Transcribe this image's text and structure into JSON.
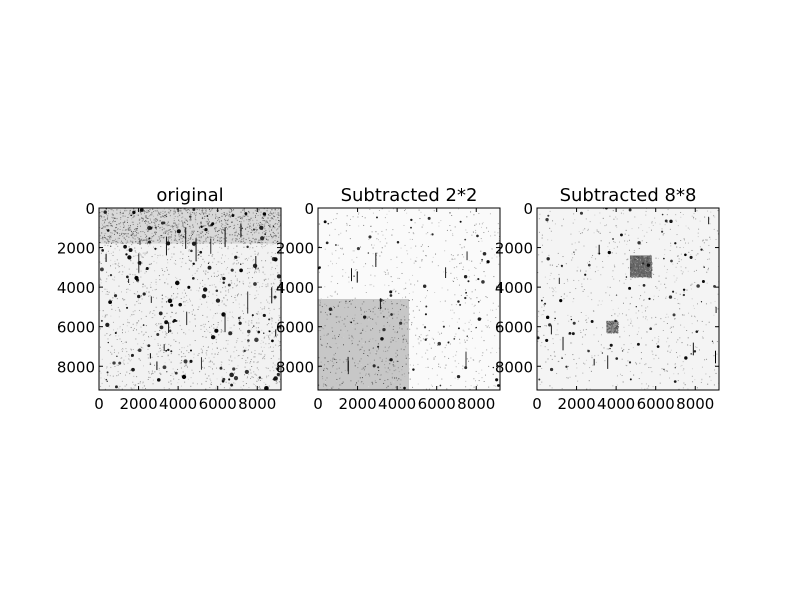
{
  "chart_data": [
    {
      "type": "heatmap",
      "title": "original",
      "xlabel": "",
      "ylabel": "",
      "xlim": [
        0,
        9200
      ],
      "ylim": [
        9200,
        0
      ],
      "xticks": [
        0,
        2000,
        4000,
        6000,
        8000
      ],
      "yticks": [
        0,
        2000,
        4000,
        6000,
        8000
      ],
      "colormap": "gray_r",
      "background": "#f2f2f2",
      "features": [
        {
          "kind": "dark band",
          "x": [
            0,
            9200
          ],
          "y": [
            0,
            1800
          ],
          "intensity": 0.45
        },
        {
          "kind": "many dark stars and vertical streaks",
          "x": [
            0,
            9200
          ],
          "y": [
            0,
            9200
          ],
          "intensity": 1.0
        }
      ]
    },
    {
      "type": "heatmap",
      "title": "Subtracted 2*2",
      "xlabel": "",
      "ylabel": "",
      "xlim": [
        0,
        9200
      ],
      "ylim": [
        9200,
        0
      ],
      "xticks": [
        0,
        2000,
        4000,
        6000,
        8000
      ],
      "yticks": [
        0,
        2000,
        4000,
        6000,
        8000
      ],
      "colormap": "gray_r",
      "background": "#fafafa",
      "features": [
        {
          "kind": "grey block",
          "x": [
            0,
            4600
          ],
          "y": [
            4600,
            9200
          ],
          "intensity": 0.22
        },
        {
          "kind": "sparse dark stars",
          "x": [
            0,
            9200
          ],
          "y": [
            0,
            9200
          ],
          "intensity": 0.9
        }
      ]
    },
    {
      "type": "heatmap",
      "title": "Subtracted 8*8",
      "xlabel": "",
      "ylabel": "",
      "xlim": [
        0,
        9200
      ],
      "ylim": [
        9200,
        0
      ],
      "xticks": [
        0,
        2000,
        4000,
        6000,
        8000
      ],
      "yticks": [
        0,
        2000,
        4000,
        6000,
        8000
      ],
      "colormap": "gray_r",
      "background": "#f4f4f4",
      "features": [
        {
          "kind": "dark square",
          "x": [
            4700,
            5800
          ],
          "y": [
            2400,
            3500
          ],
          "intensity": 0.6
        },
        {
          "kind": "grey patch",
          "x": [
            3500,
            4100
          ],
          "y": [
            5700,
            6300
          ],
          "intensity": 0.35
        },
        {
          "kind": "sparse dark stars",
          "x": [
            0,
            9200
          ],
          "y": [
            0,
            9200
          ],
          "intensity": 0.9
        }
      ]
    }
  ]
}
